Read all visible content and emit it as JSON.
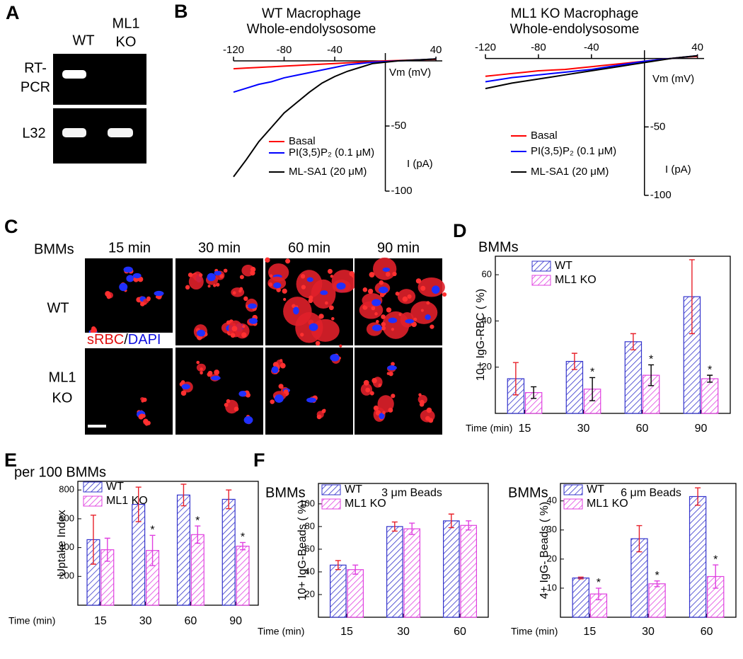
{
  "panel_labels": [
    "A",
    "B",
    "C",
    "D",
    "E",
    "F"
  ],
  "gel": {
    "lane_labels": [
      "WT",
      "ML1",
      "KO"
    ],
    "row_labels": [
      "RT-",
      "PCR",
      "L32"
    ]
  },
  "microscopy": {
    "corner": "BMMs",
    "columns": [
      "15 min",
      "30 min",
      "60 min",
      "90 min"
    ],
    "row_labels": [
      "WT",
      "ML1",
      "KO"
    ],
    "stain": [
      "sRBC",
      "/",
      "DAPI"
    ]
  },
  "chart_data": [
    {
      "type": "line",
      "title": [
        "WT Macrophage",
        "Whole-endolysosome"
      ],
      "x": [
        -120,
        -110,
        -100,
        -90,
        -80,
        -70,
        -60,
        -50,
        -40,
        -30,
        -20,
        -10,
        0,
        10,
        20,
        30,
        40
      ],
      "series": [
        {
          "name": "Basal",
          "color": "#ff0000",
          "values": [
            -6,
            -5.5,
            -5,
            -4.5,
            -4,
            -3.5,
            -3,
            -2.5,
            -2,
            -1.5,
            -1,
            -0.5,
            0,
            0.3,
            0.6,
            0.9,
            1.2
          ]
        },
        {
          "name": "PI(3,5)P₂ (0.1 μM)",
          "color": "#0000ff",
          "values": [
            -24,
            -21,
            -18,
            -16,
            -13,
            -11,
            -9,
            -7,
            -5,
            -3,
            -2,
            -1,
            -0.5,
            0,
            0.5,
            1,
            1.5
          ]
        },
        {
          "name": "ML-SA1 (20 μM)",
          "color": "#000000",
          "values": [
            -89,
            -76,
            -62,
            -51,
            -40,
            -32,
            -24,
            -17,
            -12,
            -8,
            -5,
            -2,
            -1,
            0,
            0.5,
            1,
            1.5
          ]
        }
      ],
      "xlim": [
        -120,
        45
      ],
      "ylim": [
        -100,
        6
      ],
      "xticks": [
        -120,
        -80,
        -40,
        40
      ],
      "yticks": [
        -50,
        -100
      ],
      "xlabel": "Vm (mV)",
      "ylabel": "I (pA)"
    },
    {
      "type": "line",
      "title": [
        "ML1 KO Macrophage",
        "Whole-endolysosome"
      ],
      "x": [
        -120,
        -110,
        -100,
        -90,
        -80,
        -70,
        -60,
        -50,
        -40,
        -30,
        -20,
        -10,
        0,
        10,
        20,
        30,
        40
      ],
      "series": [
        {
          "name": "Basal",
          "color": "#ff0000",
          "values": [
            -13,
            -12,
            -11,
            -10,
            -9,
            -8.5,
            -8,
            -7,
            -6,
            -5,
            -4,
            -3,
            -2,
            -1,
            0,
            1,
            1.5
          ]
        },
        {
          "name": "PI(3,5)P₂ (0.1 μM)",
          "color": "#0000ff",
          "values": [
            -17,
            -15.5,
            -14,
            -13,
            -12,
            -11,
            -10,
            -9,
            -8,
            -6.5,
            -5,
            -3.5,
            -2,
            -1,
            0,
            1,
            2
          ]
        },
        {
          "name": "ML-SA1 (20 μM)",
          "color": "#000000",
          "values": [
            -22,
            -20,
            -18,
            -16.5,
            -15,
            -13.5,
            -12,
            -10.5,
            -9,
            -7.5,
            -6,
            -4.5,
            -3,
            -1.5,
            0,
            1,
            2
          ]
        }
      ],
      "xlim": [
        -120,
        45
      ],
      "ylim": [
        -100,
        6
      ],
      "xticks": [
        -120,
        -80,
        -40,
        40
      ],
      "yticks": [
        -50,
        -100
      ],
      "xlabel": "Vm (mV)",
      "ylabel": "I (pA)"
    },
    {
      "type": "bar",
      "title": "BMMs",
      "categories": [
        "15",
        "30",
        "60",
        "90"
      ],
      "series": [
        {
          "name": "WT",
          "color": "#3333cc",
          "values": [
            15,
            22.5,
            31,
            50.5
          ],
          "errors": [
            7,
            3.5,
            3.5,
            16
          ],
          "error_color": "#e8202a"
        },
        {
          "name": "ML1 KO",
          "color": "#e040e0",
          "values": [
            9,
            10.5,
            16.5,
            15
          ],
          "errors": [
            2.5,
            5,
            4.5,
            1.5
          ],
          "error_color": "#000000",
          "markers": [
            null,
            "*",
            "*",
            "*"
          ]
        }
      ],
      "ylim": [
        0,
        68
      ],
      "yticks": [
        20,
        40,
        60
      ],
      "xlabel": "Time (min)",
      "ylabel": "10+ IgG-RBC ( %)"
    },
    {
      "type": "bar",
      "title": "per 100 BMMs",
      "categories": [
        "15",
        "30",
        "60",
        "90"
      ],
      "series": [
        {
          "name": "WT",
          "color": "#3333cc",
          "values": [
            455,
            700,
            765,
            735
          ],
          "errors": [
            170,
            120,
            75,
            65
          ],
          "error_color": "#e8202a"
        },
        {
          "name": "ML1 KO",
          "color": "#e040e0",
          "values": [
            385,
            380,
            490,
            410
          ],
          "errors": [
            80,
            105,
            60,
            25
          ],
          "error_color": "#e040e0",
          "markers": [
            null,
            "*",
            "*",
            "*"
          ]
        }
      ],
      "ylim": [
        0,
        860
      ],
      "yticks": [
        200,
        400,
        600,
        800
      ],
      "xlabel": "Time (min)",
      "ylabel": "Uptake Index"
    },
    {
      "type": "bar",
      "title": "BMMs",
      "subtitle": "3 μm Beads",
      "categories": [
        "15",
        "30",
        "60"
      ],
      "series": [
        {
          "name": "WT",
          "color": "#3333cc",
          "values": [
            46,
            80,
            85
          ],
          "errors": [
            4,
            4,
            6
          ],
          "error_color": "#e8202a"
        },
        {
          "name": "ML1 KO",
          "color": "#e040e0",
          "values": [
            42,
            78,
            81
          ],
          "errors": [
            4,
            5,
            4
          ],
          "error_color": "#e040e0"
        }
      ],
      "ylim": [
        0,
        118
      ],
      "yticks": [
        20,
        40,
        60,
        80,
        100
      ],
      "xlabel": "Time (min)",
      "ylabel": "10+ IgG-Beads ( %)"
    },
    {
      "type": "bar",
      "title": "BMMs",
      "subtitle": "6 μm Beads",
      "categories": [
        "15",
        "30",
        "60"
      ],
      "series": [
        {
          "name": "WT",
          "color": "#3333cc",
          "values": [
            13.5,
            27,
            41.5
          ],
          "errors": [
            0.3,
            4.5,
            3
          ],
          "error_color": "#e8202a"
        },
        {
          "name": "ML1 KO",
          "color": "#e040e0",
          "values": [
            8,
            11.5,
            14
          ],
          "errors": [
            2,
            1,
            4
          ],
          "error_color": "#e040e0",
          "markers": [
            "*",
            "*",
            "*"
          ]
        }
      ],
      "ylim": [
        0,
        46
      ],
      "yticks": [
        10,
        20,
        30,
        40
      ],
      "xlabel": "Time (min)",
      "ylabel": "4+ IgG- Beads ( %)"
    }
  ]
}
